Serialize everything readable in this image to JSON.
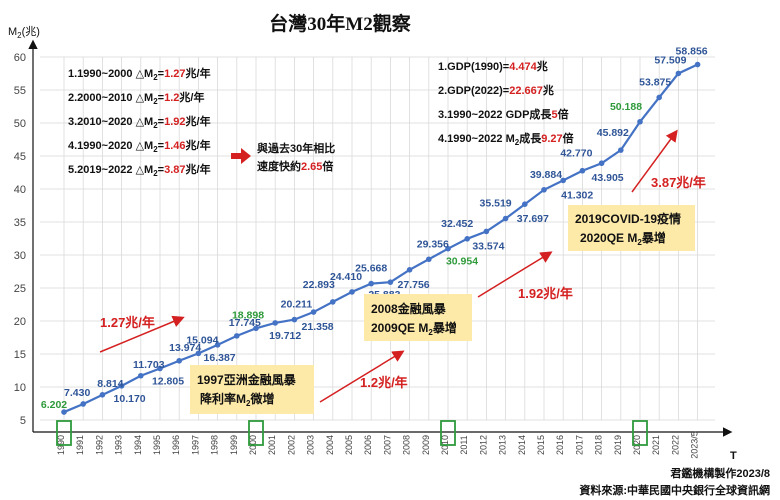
{
  "chart_data": {
    "type": "line",
    "title": "台灣30年M2觀察",
    "ylabel": "M2(兆)",
    "xlabel": "T",
    "ylim": [
      5,
      60
    ],
    "yticks": [
      5,
      10,
      15,
      20,
      25,
      30,
      35,
      40,
      45,
      50,
      55,
      60
    ],
    "x": [
      "1990",
      "1991",
      "1992",
      "1993",
      "1994",
      "1995",
      "1996",
      "1997",
      "1998",
      "1999",
      "2000",
      "2001",
      "2002",
      "2003",
      "2004",
      "2005",
      "2006",
      "2007",
      "2008",
      "2009",
      "2010",
      "2011",
      "2012",
      "2013",
      "2014",
      "2015",
      "2016",
      "2017",
      "2018",
      "2019",
      "2020",
      "2021",
      "2022",
      "2023/5"
    ],
    "series": [
      {
        "values": [
          6.202,
          7.43,
          8.814,
          10.17,
          11.703,
          12.805,
          13.974,
          15.094,
          16.387,
          17.745,
          18.898,
          19.712,
          20.211,
          21.358,
          22.893,
          24.41,
          25.668,
          25.883,
          27.756,
          29.356,
          30.954,
          32.452,
          33.574,
          35.519,
          37.697,
          39.884,
          41.302,
          42.77,
          43.905,
          45.892,
          50.188,
          53.875,
          57.509,
          58.856
        ],
        "labels": [
          "6.202",
          "7.430",
          "8.814",
          "10.170",
          "11.703",
          "12.805",
          "13.974",
          "15.094",
          "16.387",
          "17.745",
          "18.898",
          "19.712",
          "20.211",
          "21.358",
          "22.893",
          "24.410",
          "25.668",
          "25.883",
          "27.756",
          "29.356",
          "30.954",
          "32.452",
          "33.574",
          "35.519",
          "37.697",
          "39.884",
          "41.302",
          "42.770",
          "43.905",
          "45.892",
          "50.188",
          "53.875",
          "57.509",
          "58.856"
        ]
      }
    ],
    "highlight_years": [
      "1990",
      "2000",
      "2010",
      "2020"
    ],
    "grid": true,
    "colors": {
      "line": "#4472c4",
      "label": "#2f5597",
      "highlight": "#2e9a3a",
      "red": "#d42020",
      "box": "#fde9a8",
      "grid": "#d9d9d9"
    }
  },
  "notes_left": [
    {
      "prefix": "1.1990~2000 △M",
      "sub": "2",
      "mid": "=",
      "value": "1.27",
      "suffix": "兆/年"
    },
    {
      "prefix": "2.2000~2010 △M",
      "sub": "2",
      "mid": "=",
      "value": "1.2",
      "suffix": "兆/年"
    },
    {
      "prefix": "3.2010~2020 △M",
      "sub": "2",
      "mid": "=",
      "value": "1.92",
      "suffix": "兆/年"
    },
    {
      "prefix": "4.1990~2020 △M",
      "sub": "2",
      "mid": "=",
      "value": "1.46",
      "suffix": "兆/年"
    },
    {
      "prefix": "5.2019~2022 △M",
      "sub": "2",
      "mid": "=",
      "value": "3.87",
      "suffix": "兆/年"
    }
  ],
  "compare_note": {
    "line1": "與過去30年相比",
    "line2_a": "速度快約",
    "line2_value": "2.65",
    "line2_b": "倍"
  },
  "notes_right": [
    {
      "prefix": "1.GDP(1990)=",
      "value": "4.474",
      "suffix": "兆"
    },
    {
      "prefix": "2.GDP(2022)=",
      "value": "22.667",
      "suffix": "兆"
    },
    {
      "prefix": "3.1990~2022 GDP成長",
      "value": "5",
      "suffix": "倍"
    },
    {
      "prefix": "4.1990~2022 M",
      "sub": "2",
      "mid": "成長",
      "value": "9.27",
      "suffix": "倍"
    }
  ],
  "rates": [
    "1.27兆/年",
    "1.2兆/年",
    "1.92兆/年",
    "3.87兆/年"
  ],
  "boxes": [
    {
      "line1": "1997亞洲金融風暴",
      "line2a": "降利率M",
      "line2sub": "2",
      "line2b": "微增"
    },
    {
      "line1": "2008金融風暴",
      "line2a": "2009QE M",
      "line2sub": "2",
      "line2b": "暴增"
    },
    {
      "line1": "2019COVID-19疫情",
      "line2a": "2020QE M",
      "line2sub": "2",
      "line2b": "暴增"
    }
  ],
  "y_axis_label": {
    "main": "M",
    "sub": "2",
    "unit": "(兆)"
  },
  "credits": {
    "maker": "君鑑機構製作2023/8",
    "source": "資料來源:中華民國中央銀行全球資訊網"
  }
}
